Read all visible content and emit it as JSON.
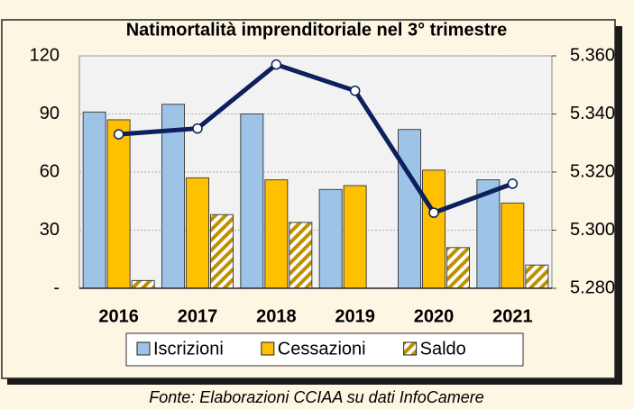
{
  "chart_data": {
    "type": "bar",
    "title": "Natimortalità imprenditoriale nel 3° trimestre",
    "categories": [
      "2016",
      "2017",
      "2018",
      "2019",
      "2020",
      "2021"
    ],
    "series": [
      {
        "name": "Iscrizioni",
        "color": "#9dc3e6",
        "values": [
          91,
          95,
          90,
          51,
          82,
          56
        ]
      },
      {
        "name": "Cessazioni",
        "color": "#ffc000",
        "values": [
          87,
          57,
          56,
          53,
          61,
          44
        ]
      },
      {
        "name": "Saldo",
        "color": "#bf9000",
        "values": [
          4,
          38,
          34,
          null,
          21,
          12
        ]
      },
      {
        "color": "#0d1f5c",
        "axis": "y2",
        "values": [
          5333,
          5335,
          5357,
          5348,
          5306,
          5316
        ]
      }
    ],
    "ylim": [
      0,
      120
    ],
    "yticks": [
      {
        "value": 0,
        "label": "-"
      },
      30,
      60,
      90,
      120
    ],
    "y2lim": [
      5280,
      5360
    ],
    "y2ticks": [
      {
        "value": 5280,
        "label": "5.280"
      },
      {
        "value": 5300,
        "label": "5.300"
      },
      {
        "value": 5320,
        "label": "5.320"
      },
      {
        "value": 5340,
        "label": "5.340"
      },
      {
        "value": 5360,
        "label": "5.360"
      }
    ],
    "grid": true,
    "legend": "bottom",
    "source": "Fonte: Elaborazioni CCIAA su dati InfoCamere"
  }
}
